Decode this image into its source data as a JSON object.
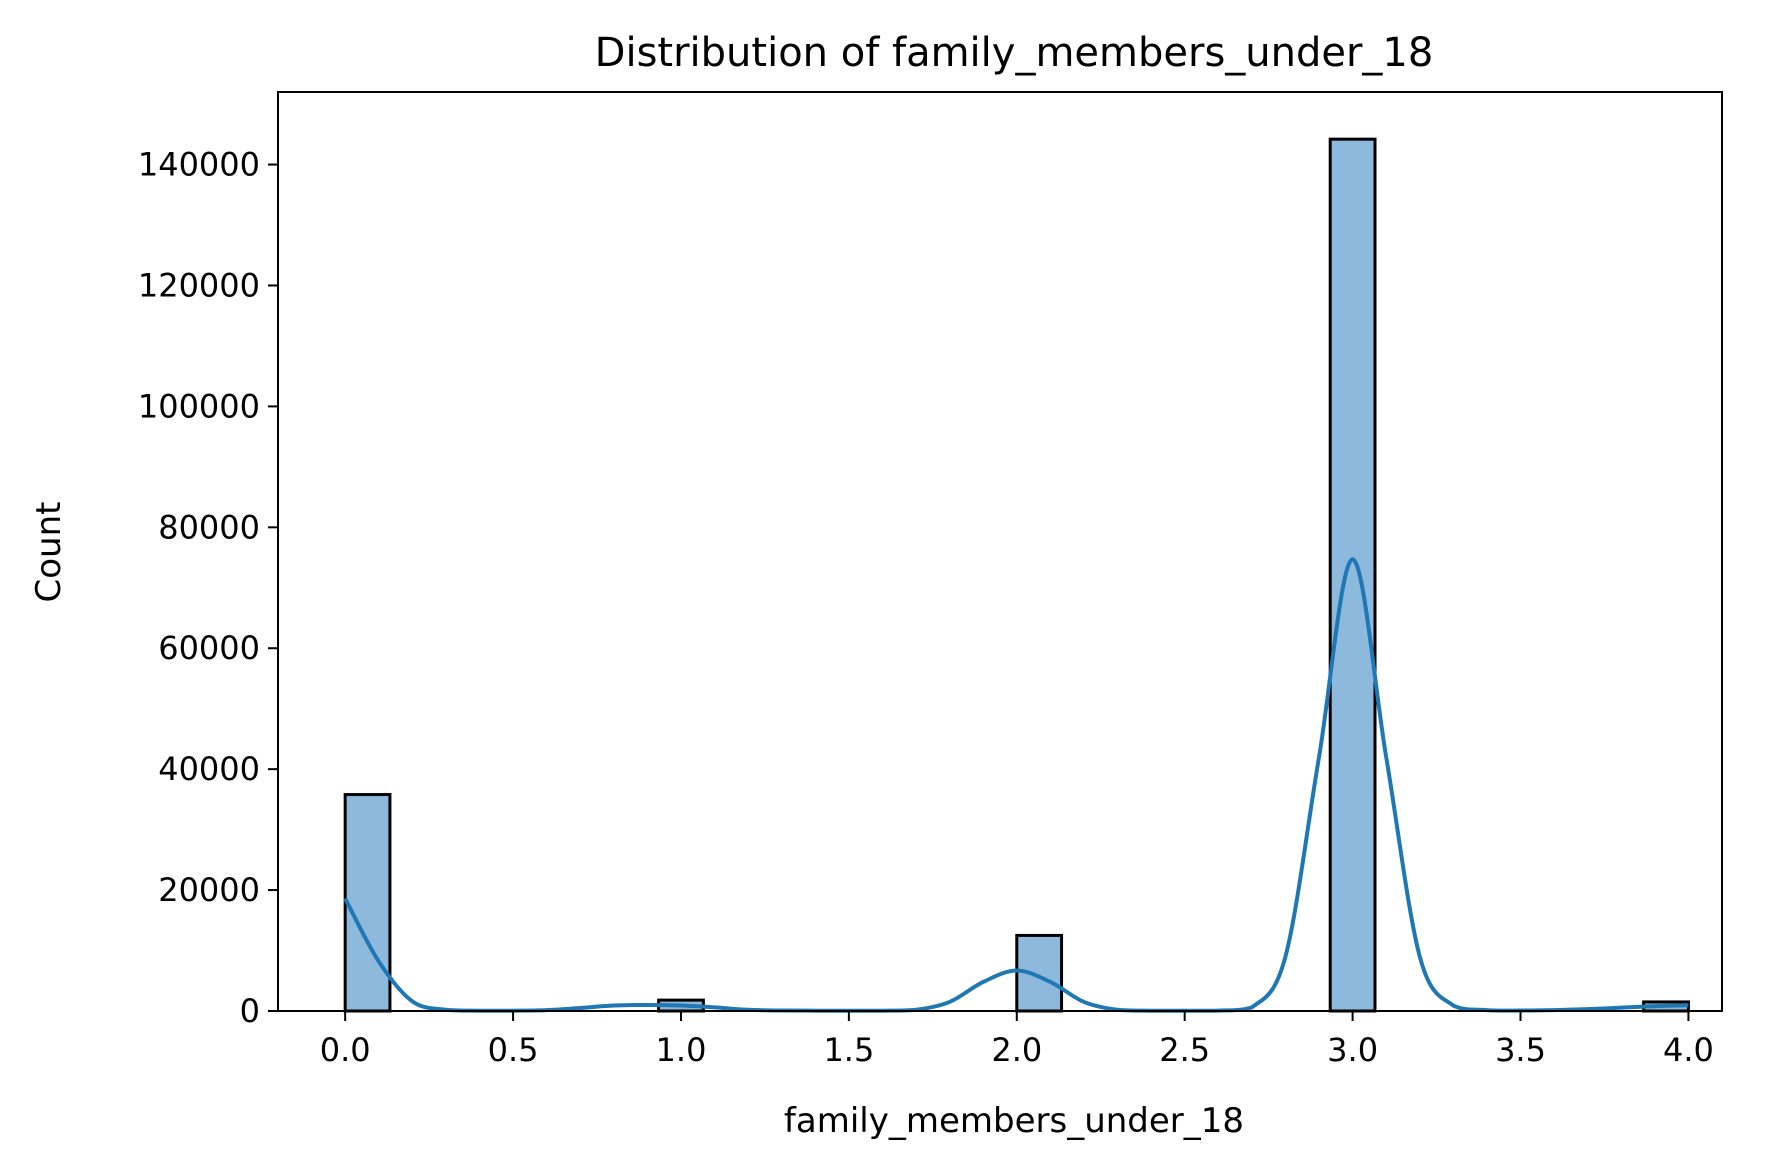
{
  "chart_data": {
    "type": "bar",
    "title": "Distribution of family_members_under_18",
    "xlabel": "family_members_under_18",
    "ylabel": "Count",
    "xlim": [
      -0.2,
      4.1
    ],
    "ylim": [
      0,
      152000
    ],
    "x_ticks": [
      0.0,
      0.5,
      1.0,
      1.5,
      2.0,
      2.5,
      3.0,
      3.5,
      4.0
    ],
    "x_tick_labels": [
      "0.0",
      "0.5",
      "1.0",
      "1.5",
      "2.0",
      "2.5",
      "3.0",
      "3.5",
      "4.0"
    ],
    "y_ticks": [
      0,
      20000,
      40000,
      60000,
      80000,
      100000,
      120000,
      140000
    ],
    "y_tick_labels": [
      "0",
      "20000",
      "40000",
      "60000",
      "80000",
      "100000",
      "120000",
      "140000"
    ],
    "grid": false,
    "histogram": {
      "bin_edges": [
        0.0,
        0.1333,
        0.2667,
        0.4,
        0.5333,
        0.6667,
        0.8,
        0.9333,
        1.0667,
        1.2,
        1.3333,
        1.4667,
        1.6,
        1.7333,
        1.8667,
        2.0,
        2.1333,
        2.2667,
        2.4,
        2.5333,
        2.6667,
        2.8,
        2.9333,
        3.0667,
        3.2,
        3.3333,
        3.4667,
        3.6,
        3.7333,
        3.8667,
        4.0
      ],
      "counts": [
        35800,
        0,
        0,
        0,
        0,
        0,
        0,
        1800,
        0,
        0,
        0,
        0,
        0,
        0,
        0,
        12500,
        0,
        0,
        0,
        0,
        0,
        0,
        144200,
        0,
        0,
        0,
        0,
        0,
        0,
        1500
      ]
    },
    "kde": {
      "x": [
        0.0,
        0.1,
        0.2,
        0.3,
        0.4,
        0.5,
        0.6,
        0.7,
        0.8,
        0.9,
        1.0,
        1.1,
        1.2,
        1.3,
        1.4,
        1.5,
        1.6,
        1.7,
        1.8,
        1.9,
        2.0,
        2.1,
        2.2,
        2.3,
        2.4,
        2.5,
        2.6,
        2.7,
        2.8,
        2.9,
        3.0,
        3.1,
        3.2,
        3.3,
        3.4,
        3.5,
        3.6,
        3.7,
        3.8,
        3.9,
        4.0
      ],
      "y": [
        18600,
        8200,
        1600,
        200,
        50,
        50,
        150,
        500,
        900,
        1000,
        900,
        600,
        200,
        80,
        50,
        50,
        50,
        200,
        1500,
        4800,
        6700,
        4800,
        1500,
        200,
        50,
        50,
        60,
        600,
        9000,
        42000,
        74700,
        42000,
        9000,
        900,
        150,
        80,
        150,
        300,
        550,
        800,
        950
      ]
    },
    "colors": {
      "bar_fill": "#8db9dc",
      "bar_edge": "#000000",
      "kde_line": "#1f77b4"
    }
  }
}
